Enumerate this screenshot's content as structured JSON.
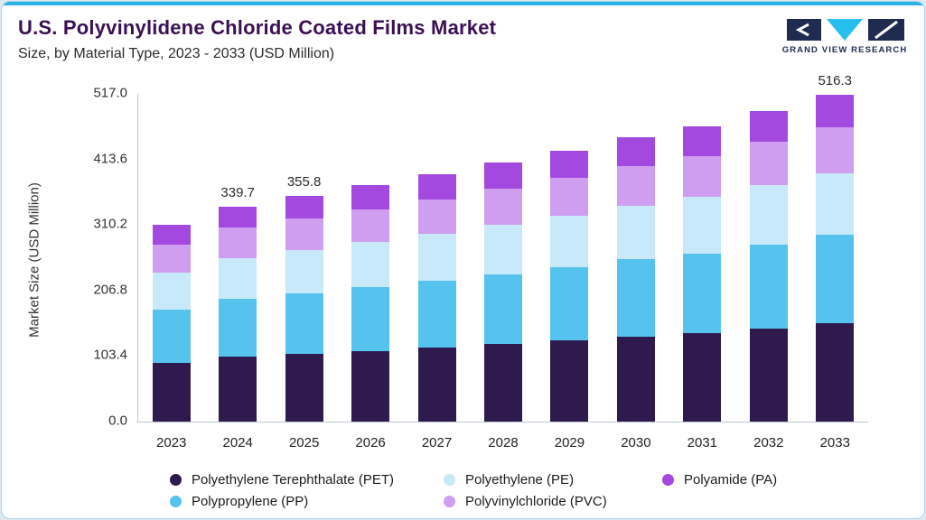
{
  "header": {
    "title": "U.S. Polyvinylidene Chloride Coated Films Market",
    "subtitle": "Size, by Material Type, 2023 - 2033 (USD Million)",
    "brand": "GRAND VIEW RESEARCH"
  },
  "chart_data": {
    "type": "bar",
    "stacked": true,
    "title": "U.S. Polyvinylidene Chloride Coated Films Market Size, by Material Type, 2023 - 2033 (USD Million)",
    "ylabel": "Market Size (USD Million)",
    "xlabel": "",
    "ylim": [
      0,
      517.0
    ],
    "yticks": [
      0.0,
      103.4,
      206.8,
      310.2,
      413.6,
      517.0
    ],
    "categories": [
      "2023",
      "2024",
      "2025",
      "2026",
      "2027",
      "2028",
      "2029",
      "2030",
      "2031",
      "2032",
      "2033"
    ],
    "bar_labels": [
      "",
      "339.7",
      "355.8",
      "",
      "",
      "",
      "",
      "",
      "",
      "",
      "516.3"
    ],
    "series": [
      {
        "key": "pet",
        "name": "Polyethylene Terephthalate (PET)",
        "color": "#2e1a4d",
        "values": [
          93.0,
          101.9,
          106.7,
          111.8,
          117.0,
          122.6,
          128.4,
          134.6,
          139.8,
          147.2,
          154.9
        ]
      },
      {
        "key": "pp",
        "name": "Polypropylene (PP)",
        "color": "#56c2ee",
        "values": [
          83.7,
          91.7,
          96.1,
          100.6,
          105.3,
          110.3,
          115.6,
          121.1,
          125.8,
          132.4,
          139.4
        ]
      },
      {
        "key": "pe",
        "name": "Polyethylene (PE)",
        "color": "#c8e9f9",
        "values": [
          58.9,
          64.5,
          67.6,
          70.8,
          74.1,
          77.6,
          81.3,
          85.2,
          88.5,
          93.2,
          98.1
        ]
      },
      {
        "key": "pvc",
        "name": "Polyvinylchloride (PVC)",
        "color": "#cf9ef0",
        "values": [
          43.4,
          47.6,
          49.8,
          52.2,
          54.6,
          57.2,
          59.9,
          62.8,
          65.2,
          68.7,
          72.3
        ]
      },
      {
        "key": "pa",
        "name": "Polyamide (PA)",
        "color": "#a349e0",
        "values": [
          31.0,
          34.0,
          35.6,
          37.3,
          39.0,
          40.9,
          42.8,
          44.9,
          46.6,
          49.1,
          51.6
        ]
      }
    ],
    "totals": [
      310.0,
      339.7,
      355.8,
      372.7,
      390.0,
      408.6,
      428.0,
      448.6,
      465.9,
      490.6,
      516.3
    ],
    "legend": [
      {
        "key": "pet",
        "label": "Polyethylene Terephthalate (PET)",
        "color": "#2e1a4d"
      },
      {
        "key": "pe",
        "label": "Polyethylene (PE)",
        "color": "#c8e9f9"
      },
      {
        "key": "pa",
        "label": "Polyamide (PA)",
        "color": "#a349e0"
      },
      {
        "key": "pp",
        "label": "Polypropylene (PP)",
        "color": "#56c2ee"
      },
      {
        "key": "pvc",
        "label": "Polyvinylchloride (PVC)",
        "color": "#cf9ef0"
      }
    ],
    "legend_position": "bottom",
    "grid": false
  }
}
